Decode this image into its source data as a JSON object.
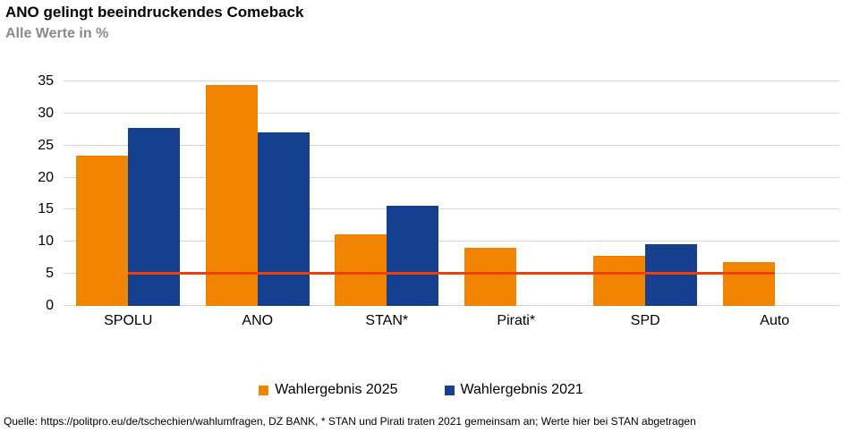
{
  "header": {
    "title": "ANO gelingt beeindruckendes Comeback",
    "subtitle": "Alle Werte in %"
  },
  "chart_data": {
    "type": "bar",
    "title": "ANO gelingt beeindruckendes Comeback",
    "subtitle": "Alle Werte in %",
    "categories": [
      "SPOLU",
      "ANO",
      "STAN*",
      "Pirati*",
      "SPD",
      "Auto"
    ],
    "series": [
      {
        "name": "Wahlergebnis 2025",
        "color": "#F08300",
        "values": [
          23.4,
          34.5,
          11.2,
          9.0,
          7.8,
          6.8
        ]
      },
      {
        "name": "Wahlergebnis 2021",
        "color": "#16408E",
        "values": [
          27.8,
          27.1,
          15.6,
          null,
          9.6,
          null
        ]
      }
    ],
    "threshold_line": {
      "value": 5,
      "color": "#E8420A"
    },
    "ylim": [
      0,
      35
    ],
    "ytick_step": 5,
    "grid": true,
    "grid_color": "#d4d4d4",
    "legend_position": "bottom",
    "xlabel": "",
    "ylabel": ""
  },
  "footer": {
    "source": "Quelle: https://politpro.eu/de/tschechien/wahlumfragen, DZ BANK, * STAN und Pirati traten 2021 gemeinsam an; Werte hier bei STAN abgetragen"
  }
}
